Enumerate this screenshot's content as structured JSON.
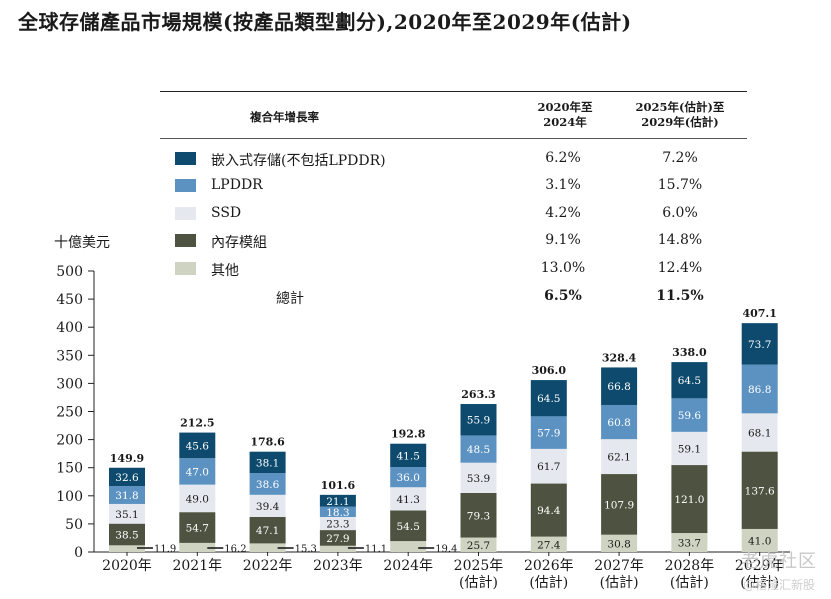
{
  "title": "全球存儲產品市場規模(按產品類型劃分),2020年至2029年(估計)",
  "unit_label": "十億美元",
  "legend": {
    "cagr_header": "複合年增長率",
    "period1_line1": "2020年至",
    "period1_line2": "2024年",
    "period2_line1": "2025年(估計)至",
    "period2_line2": "2029年(估計)",
    "rows": [
      {
        "name": "嵌入式存儲(不包括LPDDR)",
        "p1": "6.2%",
        "p2": "7.2%",
        "color": "#0d4a6e"
      },
      {
        "name": "LPDDR",
        "p1": "3.1%",
        "p2": "15.7%",
        "color": "#5b92c1"
      },
      {
        "name": "SSD",
        "p1": "4.2%",
        "p2": "6.0%",
        "color": "#e5e9ef"
      },
      {
        "name": "內存模組",
        "p1": "9.1%",
        "p2": "14.8%",
        "color": "#4d5340"
      },
      {
        "name": "其他",
        "p1": "13.0%",
        "p2": "12.4%",
        "color": "#cfd3c2"
      }
    ],
    "total_label": "總計",
    "total_p1": "6.5%",
    "total_p2": "11.5%"
  },
  "chart_data": {
    "type": "bar",
    "stacked": true,
    "categories": [
      "2020年",
      "2021年",
      "2022年",
      "2023年",
      "2024年",
      "2025年\n(估計)",
      "2026年\n(估計)",
      "2027年\n(估計)",
      "2028年\n(估計)",
      "2029年\n(估計)"
    ],
    "series": [
      {
        "name": "其他",
        "values": [
          11.9,
          16.2,
          15.3,
          11.1,
          19.4,
          25.7,
          27.4,
          30.8,
          33.7,
          41.0
        ]
      },
      {
        "name": "內存模組",
        "values": [
          38.5,
          54.7,
          47.1,
          27.9,
          54.5,
          79.3,
          94.4,
          107.9,
          121.0,
          137.6
        ]
      },
      {
        "name": "SSD",
        "values": [
          35.1,
          49.0,
          39.4,
          23.3,
          41.3,
          53.9,
          61.7,
          62.1,
          59.1,
          68.1
        ]
      },
      {
        "name": "LPDDR",
        "values": [
          31.8,
          47.0,
          38.6,
          18.3,
          36.0,
          48.5,
          57.9,
          60.8,
          59.6,
          86.8
        ]
      },
      {
        "name": "嵌入式存儲(不包括LPDDR)",
        "values": [
          32.6,
          45.6,
          38.1,
          21.1,
          41.5,
          55.9,
          64.5,
          66.8,
          64.5,
          73.7
        ]
      }
    ],
    "totals": [
      "149.9",
      "212.5",
      "178.6",
      "101.6",
      "192.8",
      "263.3",
      "306.0",
      "328.4",
      "338.0",
      "407.1"
    ],
    "others_outside": [
      true,
      true,
      true,
      true,
      true,
      false,
      false,
      false,
      false,
      false
    ],
    "ylim": [
      0,
      500
    ],
    "yticks": [
      0,
      50,
      100,
      150,
      200,
      250,
      300,
      350,
      400,
      450,
      500
    ],
    "colors": [
      "#cfd3c2",
      "#4d5340",
      "#e5e9ef",
      "#5b92c1",
      "#0d4a6e"
    ],
    "ylabel": "十億美元"
  },
  "watermark": "老虎社区",
  "watermark2": "@格隆汇新股"
}
